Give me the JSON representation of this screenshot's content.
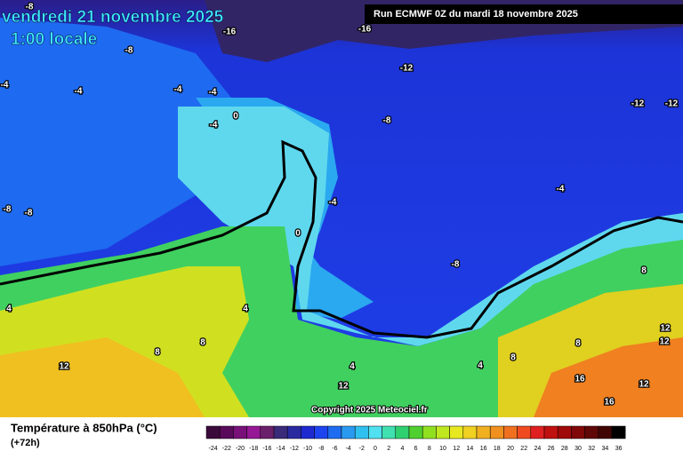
{
  "header": {
    "title": "vendredi 21 novembre 2025",
    "subtitle": "1:00 locale",
    "run": "Run ECMWF 0Z du mardi 18 novembre 2025"
  },
  "map": {
    "labels": [
      -8,
      -16,
      -16,
      -8,
      -12,
      -4,
      -4,
      -4,
      -4,
      0,
      -4,
      -8,
      -12,
      -12,
      -8,
      -8,
      -4,
      0,
      -4,
      -8,
      4,
      4,
      8,
      8,
      8,
      12,
      12,
      12,
      8,
      8,
      4,
      4,
      12,
      16,
      12,
      16
    ],
    "copyright": "Copyright 2025 Meteociel.fr"
  },
  "footer": {
    "legend_title": "Température à 850hPa (°C)",
    "lead": "(+72h)",
    "scale": [
      -24,
      -22,
      -20,
      -18,
      -16,
      -14,
      -12,
      -10,
      -8,
      -6,
      -4,
      -2,
      0,
      2,
      4,
      6,
      8,
      10,
      12,
      14,
      16,
      18,
      20,
      22,
      24,
      26,
      28,
      30,
      32,
      34,
      36
    ]
  }
}
